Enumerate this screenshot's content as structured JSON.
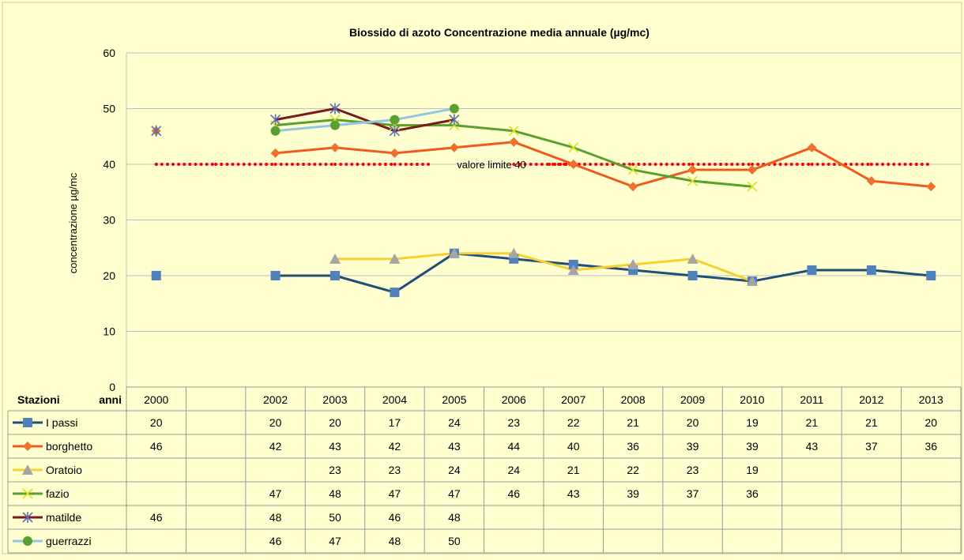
{
  "chart_data": {
    "type": "line",
    "title": "Biossido  di azoto Concentrazione  media annuale  (µg/mc)",
    "ylabel": "concentrazione µg/mc",
    "ylim": [
      0,
      60
    ],
    "yticks": [
      0,
      10,
      20,
      30,
      40,
      50,
      60
    ],
    "grid": true,
    "categories": [
      "2000",
      "",
      "2002",
      "2003",
      "2004",
      "2005",
      "2006",
      "2007",
      "2008",
      "2009",
      "2010",
      "2011",
      "2012",
      "2013"
    ],
    "table_header": {
      "stazioni": "Stazioni",
      "anni": "anni"
    },
    "reference_line": {
      "value": 40,
      "label": "valore limite  40",
      "color": "#ff0000"
    },
    "series": [
      {
        "name": "I passi",
        "color": "#1f4e79",
        "marker_color": "#4f81bd",
        "marker": "square",
        "values": [
          20,
          null,
          20,
          20,
          17,
          24,
          23,
          22,
          21,
          20,
          19,
          21,
          21,
          20
        ]
      },
      {
        "name": "borghetto",
        "color": "#f05a1e",
        "marker_color": "#f07030",
        "marker": "diamond",
        "values": [
          46,
          null,
          42,
          43,
          42,
          43,
          44,
          40,
          36,
          39,
          39,
          43,
          37,
          36
        ]
      },
      {
        "name": "Oratoio",
        "color": "#f7d033",
        "marker_color": "#a5a5a5",
        "marker": "triangle",
        "values": [
          null,
          null,
          null,
          23,
          23,
          24,
          24,
          21,
          22,
          23,
          19,
          null,
          null,
          null
        ]
      },
      {
        "name": "fazio",
        "color": "#5aa02c",
        "marker_color": "#d8e020",
        "marker": "x",
        "values": [
          null,
          null,
          47,
          48,
          47,
          47,
          46,
          43,
          39,
          37,
          36,
          null,
          null,
          null
        ]
      },
      {
        "name": "matilde",
        "color": "#7b1a1a",
        "marker_color": "#5b6fb0",
        "marker": "star",
        "values": [
          46,
          null,
          48,
          50,
          46,
          48,
          null,
          null,
          null,
          null,
          null,
          null,
          null,
          null
        ]
      },
      {
        "name": "guerrazzi",
        "color": "#92c5e8",
        "marker_color": "#5aa030",
        "marker": "circle",
        "values": [
          null,
          null,
          46,
          47,
          48,
          50,
          null,
          null,
          null,
          null,
          null,
          null,
          null,
          null
        ]
      }
    ]
  }
}
